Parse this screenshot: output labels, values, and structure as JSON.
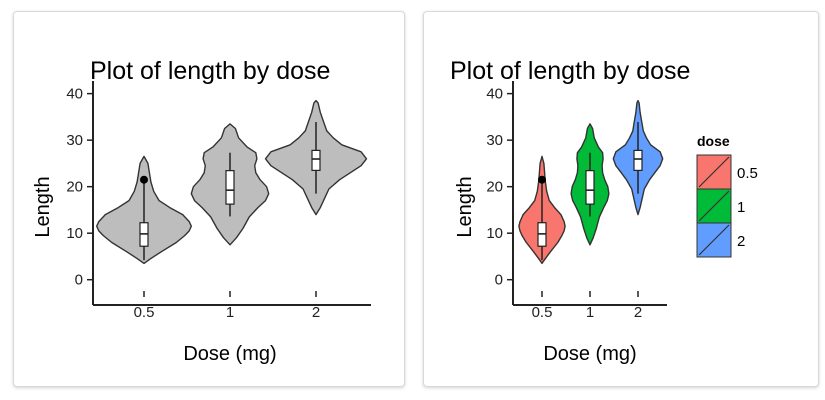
{
  "chart_data": [
    {
      "type": "violin",
      "title": "Plot of length  by dose",
      "xlabel": "Dose (mg)",
      "ylabel": "Length",
      "ylim": [
        -2,
        41
      ],
      "yticks": [
        "0",
        "10",
        "20",
        "30",
        "40"
      ],
      "categories": [
        "0.5",
        "1",
        "2"
      ],
      "fill_colors": [
        "#bdbdbd",
        "#bdbdbd",
        "#bdbdbd"
      ],
      "violins": [
        {
          "category": "0.5",
          "min": 4.2,
          "q1": 7.2,
          "median": 9.85,
          "q3": 12.25,
          "max": 21.5,
          "outliers": [
            21.5
          ]
        },
        {
          "category": "1",
          "min": 13.6,
          "q1": 16.25,
          "median": 19.25,
          "q3": 23.45,
          "max": 27.3,
          "outliers": []
        },
        {
          "category": "2",
          "min": 18.5,
          "q1": 23.5,
          "median": 25.95,
          "q3": 27.8,
          "max": 33.9,
          "outliers": []
        }
      ],
      "legend": null
    },
    {
      "type": "violin",
      "title": "Plot of length  by dose",
      "xlabel": "Dose (mg)",
      "ylabel": "Length",
      "ylim": [
        -2,
        41
      ],
      "yticks": [
        "0",
        "10",
        "20",
        "30",
        "40"
      ],
      "categories": [
        "0.5",
        "1",
        "2"
      ],
      "fill_colors": [
        "#f8766d",
        "#00ba38",
        "#619cff"
      ],
      "violins": [
        {
          "category": "0.5",
          "min": 4.2,
          "q1": 7.2,
          "median": 9.85,
          "q3": 12.25,
          "max": 21.5,
          "outliers": [
            21.5
          ]
        },
        {
          "category": "1",
          "min": 13.6,
          "q1": 16.25,
          "median": 19.25,
          "q3": 23.45,
          "max": 27.3,
          "outliers": []
        },
        {
          "category": "2",
          "min": 18.5,
          "q1": 23.5,
          "median": 25.95,
          "q3": 27.8,
          "max": 33.9,
          "outliers": []
        }
      ],
      "legend": {
        "title": "dose",
        "position": "right",
        "entries": [
          "0.5",
          "1",
          "2"
        ]
      }
    }
  ]
}
